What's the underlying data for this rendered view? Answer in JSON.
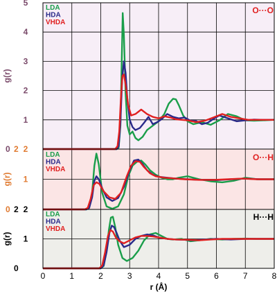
{
  "chart_data": {
    "type": "line",
    "xlabel": "r (Å)",
    "xlim": [
      0,
      8
    ],
    "x_ticks": [
      "0",
      "1",
      "2",
      "3",
      "4",
      "5",
      "6",
      "7",
      "8"
    ],
    "colors": {
      "LDA": "#1a9e4a",
      "HDA": "#2a2a8a",
      "VHDA": "#e02020",
      "oo_bg": "#f7eef7",
      "oh_bg": "#fbe5e5",
      "hh_bg": "#eeeeea"
    },
    "panels": [
      {
        "id": "oo",
        "pair_label": "O···O",
        "ylabel": "g(r)",
        "ylim": [
          0,
          5
        ],
        "y_ticks": [
          "0",
          "1",
          "2",
          "3",
          "4",
          "5"
        ],
        "legend": [
          "LDA",
          "HDA",
          "VHDA"
        ],
        "series": [
          {
            "name": "LDA",
            "x": [
              0,
              2.55,
              2.62,
              2.68,
              2.72,
              2.76,
              2.8,
              2.86,
              2.92,
              3.0,
              3.1,
              3.2,
              3.3,
              3.45,
              3.6,
              3.8,
              4.0,
              4.2,
              4.35,
              4.5,
              4.6,
              4.7,
              4.85,
              5.0,
              5.2,
              5.5,
              5.8,
              6.1,
              6.4,
              6.7,
              7.0,
              7.3,
              7.6,
              8.0
            ],
            "y": [
              0,
              0,
              0.05,
              0.8,
              2.8,
              4.65,
              3.9,
              1.9,
              0.8,
              0.5,
              0.6,
              0.38,
              0.3,
              0.42,
              0.65,
              0.8,
              0.95,
              1.2,
              1.55,
              1.72,
              1.7,
              1.5,
              1.15,
              0.95,
              0.85,
              0.92,
              0.83,
              0.98,
              1.2,
              1.12,
              0.98,
              0.97,
              0.98,
              1.0
            ]
          },
          {
            "name": "HDA",
            "x": [
              0,
              2.55,
              2.62,
              2.68,
              2.74,
              2.8,
              2.86,
              2.92,
              3.0,
              3.1,
              3.2,
              3.35,
              3.5,
              3.65,
              3.8,
              3.95,
              4.1,
              4.3,
              4.5,
              4.7,
              4.9,
              5.1,
              5.3,
              5.5,
              5.7,
              5.9,
              6.1,
              6.4,
              6.7,
              7.0,
              7.3,
              7.6,
              8.0
            ],
            "y": [
              0,
              0,
              0.1,
              0.9,
              2.4,
              3.0,
              2.6,
              1.7,
              1.0,
              0.75,
              0.65,
              0.72,
              0.9,
              1.1,
              0.85,
              0.92,
              1.02,
              1.2,
              1.1,
              1.05,
              1.08,
              0.97,
              0.96,
              0.85,
              0.9,
              1.03,
              1.15,
              1.05,
              0.95,
              0.98,
              1.01,
              1.0,
              1.0
            ]
          },
          {
            "name": "VHDA",
            "x": [
              0,
              2.5,
              2.58,
              2.64,
              2.7,
              2.75,
              2.8,
              2.86,
              2.95,
              3.05,
              3.2,
              3.4,
              3.6,
              3.8,
              4.0,
              4.2,
              4.4,
              4.6,
              4.8,
              5.0,
              5.3,
              5.6,
              5.9,
              6.2,
              6.5,
              6.8,
              7.1,
              7.5,
              8.0
            ],
            "y": [
              0,
              0,
              0.1,
              0.6,
              1.8,
              2.5,
              2.55,
              2.2,
              1.5,
              1.15,
              1.2,
              1.35,
              1.2,
              1.1,
              1.05,
              1.12,
              1.08,
              1.02,
              1.0,
              0.98,
              0.92,
              0.97,
              1.08,
              1.2,
              1.1,
              1.05,
              1.0,
              1.0,
              1.0
            ]
          }
        ]
      },
      {
        "id": "oh",
        "pair_label": "O···H",
        "ylabel": "g(r)",
        "ylim": [
          0,
          2
        ],
        "y_ticks": [
          "0",
          "1",
          "2"
        ],
        "legend": [
          "LDA",
          "HDA",
          "VHDA"
        ],
        "series": [
          {
            "name": "LDA",
            "x": [
              0,
              1.5,
              1.6,
              1.7,
              1.78,
              1.85,
              1.93,
              2.05,
              2.2,
              2.4,
              2.6,
              2.8,
              2.95,
              3.1,
              3.25,
              3.4,
              3.55,
              3.7,
              3.9,
              4.1,
              4.3,
              4.5,
              4.7,
              5.0,
              5.4,
              5.8,
              6.2,
              6.6,
              7.0,
              7.4,
              8.0
            ],
            "y": [
              0,
              0,
              0.05,
              0.55,
              1.45,
              1.85,
              1.5,
              0.55,
              0.1,
              0.02,
              0.1,
              0.5,
              1.1,
              1.45,
              1.58,
              1.62,
              1.48,
              1.3,
              1.15,
              1.05,
              1.0,
              1.0,
              1.05,
              1.1,
              1.0,
              0.93,
              0.9,
              0.95,
              1.05,
              1.0,
              1.0
            ]
          },
          {
            "name": "HDA",
            "x": [
              0,
              1.5,
              1.6,
              1.7,
              1.78,
              1.85,
              1.93,
              2.05,
              2.2,
              2.4,
              2.6,
              2.8,
              3.0,
              3.15,
              3.3,
              3.45,
              3.6,
              3.8,
              4.0,
              4.3,
              4.6,
              5.0,
              5.5,
              6.0,
              6.5,
              7.0,
              7.5,
              8.0
            ],
            "y": [
              0,
              0,
              0.05,
              0.4,
              0.95,
              1.1,
              1.0,
              0.7,
              0.4,
              0.28,
              0.38,
              0.75,
              1.3,
              1.62,
              1.65,
              1.5,
              1.3,
              1.15,
              1.08,
              1.05,
              1.02,
              1.0,
              0.98,
              0.97,
              1.0,
              1.02,
              1.0,
              1.0
            ]
          },
          {
            "name": "VHDA",
            "x": [
              0,
              1.45,
              1.55,
              1.65,
              1.75,
              1.85,
              1.95,
              2.1,
              2.3,
              2.5,
              2.7,
              2.9,
              3.05,
              3.2,
              3.35,
              3.5,
              3.7,
              3.9,
              4.2,
              4.5,
              4.9,
              5.4,
              5.9,
              6.4,
              6.9,
              7.4,
              8.0
            ],
            "y": [
              0,
              0,
              0.05,
              0.35,
              0.8,
              0.9,
              0.85,
              0.6,
              0.4,
              0.35,
              0.55,
              1.1,
              1.45,
              1.6,
              1.58,
              1.4,
              1.2,
              1.1,
              1.05,
              1.03,
              1.0,
              0.98,
              0.98,
              1.0,
              1.02,
              1.0,
              1.0
            ]
          }
        ]
      },
      {
        "id": "hh",
        "pair_label": "H···H",
        "ylabel": "g(r)",
        "ylim": [
          0,
          2
        ],
        "y_ticks": [
          "0",
          "1",
          "2"
        ],
        "legend": [
          "LDA",
          "HDA",
          "VHDA"
        ],
        "series": [
          {
            "name": "LDA",
            "x": [
              0,
              2.0,
              2.1,
              2.2,
              2.28,
              2.35,
              2.42,
              2.5,
              2.6,
              2.75,
              2.9,
              3.1,
              3.3,
              3.5,
              3.7,
              3.9,
              4.1,
              4.3,
              4.5,
              4.8,
              5.1,
              5.4,
              5.8,
              6.2,
              6.6,
              7.0,
              7.4,
              8.0
            ],
            "y": [
              0,
              0,
              0.08,
              0.6,
              1.3,
              1.72,
              1.75,
              1.4,
              0.8,
              0.35,
              0.25,
              0.35,
              0.6,
              0.95,
              1.15,
              1.2,
              1.1,
              1.0,
              0.98,
              1.0,
              0.92,
              0.95,
              1.0,
              0.98,
              1.0,
              1.01,
              1.0,
              1.0
            ]
          },
          {
            "name": "HDA",
            "x": [
              0,
              2.0,
              2.1,
              2.2,
              2.3,
              2.38,
              2.46,
              2.55,
              2.65,
              2.8,
              3.0,
              3.2,
              3.4,
              3.6,
              3.8,
              4.0,
              4.3,
              4.6,
              4.9,
              5.2,
              5.6,
              6.0,
              6.5,
              7.0,
              7.5,
              8.0
            ],
            "y": [
              0,
              0,
              0.1,
              0.55,
              1.2,
              1.45,
              1.4,
              1.2,
              0.95,
              0.72,
              0.8,
              1.0,
              1.1,
              1.15,
              1.12,
              1.05,
              1.0,
              0.98,
              0.97,
              0.95,
              0.98,
              1.0,
              0.98,
              1.0,
              1.0,
              1.0
            ]
          },
          {
            "name": "VHDA",
            "x": [
              0,
              1.95,
              2.05,
              2.15,
              2.25,
              2.33,
              2.42,
              2.52,
              2.65,
              2.8,
              3.0,
              3.2,
              3.4,
              3.6,
              3.8,
              4.0,
              4.3,
              4.6,
              5.0,
              5.4,
              5.8,
              6.2,
              6.6,
              7.0,
              7.5,
              8.0
            ],
            "y": [
              0,
              0,
              0.1,
              0.55,
              1.1,
              1.3,
              1.25,
              1.05,
              0.92,
              0.85,
              0.95,
              1.05,
              1.1,
              1.1,
              1.08,
              1.05,
              1.0,
              0.98,
              0.97,
              0.95,
              0.98,
              1.0,
              1.0,
              1.0,
              1.0,
              1.0
            ]
          }
        ]
      }
    ]
  }
}
